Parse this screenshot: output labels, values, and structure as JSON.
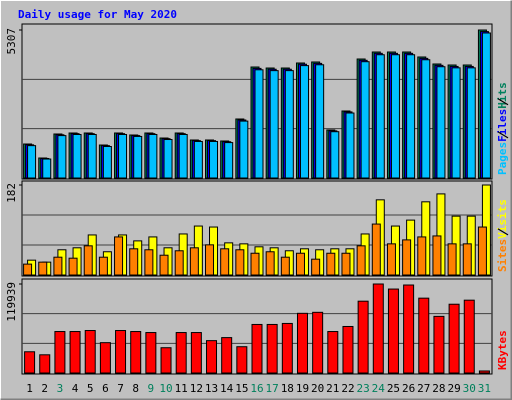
{
  "chart_data": [
    {
      "type": "bar",
      "title": "Daily usage for May 2020",
      "ylim": [
        0,
        5307
      ],
      "yticks": [
        5307
      ],
      "series": [
        {
          "name": "Hits",
          "color": "#00805c",
          "values": [
            1219,
            717,
            1578,
            1614,
            1614,
            1183,
            1614,
            1542,
            1614,
            1434,
            1614,
            1363,
            1363,
            1327,
            2116,
            3980,
            3944,
            3944,
            4124,
            4160,
            1721,
            2403,
            4267,
            4518,
            4518,
            4518,
            4339,
            4088,
            4052,
            4052,
            5307
          ]
        },
        {
          "name": "Files",
          "color": "#0000ff",
          "values": [
            1190,
            700,
            1550,
            1590,
            1590,
            1160,
            1590,
            1520,
            1590,
            1410,
            1590,
            1340,
            1340,
            1300,
            2080,
            3930,
            3900,
            3900,
            4080,
            4110,
            1690,
            2370,
            4220,
            4470,
            4470,
            4470,
            4290,
            4040,
            4000,
            4000,
            5250
          ]
        },
        {
          "name": "Pages",
          "color": "#00c0ff",
          "values": [
            1160,
            680,
            1520,
            1560,
            1560,
            1130,
            1560,
            1490,
            1560,
            1380,
            1560,
            1310,
            1310,
            1270,
            2040,
            3880,
            3850,
            3850,
            4030,
            4060,
            1660,
            2330,
            4170,
            4420,
            4420,
            4420,
            4240,
            3990,
            3950,
            3950,
            5200
          ]
        }
      ]
    },
    {
      "type": "bar",
      "ylim": [
        0,
        182
      ],
      "yticks": [
        182
      ],
      "series": [
        {
          "name": "Visits",
          "color": "#ffff00",
          "values": [
            30,
            26,
            51,
            55,
            81,
            47,
            81,
            69,
            77,
            55,
            83,
            99,
            97,
            65,
            63,
            57,
            55,
            49,
            53,
            51,
            53,
            53,
            83,
            152,
            99,
            111,
            148,
            164,
            119,
            119,
            182
          ]
        },
        {
          "name": "Sites",
          "color": "#ff8000",
          "values": [
            22,
            26,
            36,
            34,
            59,
            36,
            77,
            53,
            51,
            40,
            49,
            55,
            61,
            53,
            51,
            44,
            47,
            36,
            44,
            32,
            44,
            44,
            59,
            103,
            63,
            71,
            77,
            79,
            63,
            63,
            97
          ]
        }
      ]
    },
    {
      "type": "bar",
      "ylim": [
        0,
        119939
      ],
      "yticks": [
        119939
      ],
      "categories": [
        "1",
        "2",
        "3",
        "4",
        "5",
        "6",
        "7",
        "8",
        "9",
        "10",
        "11",
        "12",
        "13",
        "14",
        "15",
        "16",
        "17",
        "18",
        "19",
        "20",
        "21",
        "22",
        "23",
        "24",
        "25",
        "26",
        "27",
        "28",
        "29",
        "30",
        "31"
      ],
      "weekend_indices": [
        2,
        8,
        9,
        15,
        16,
        22,
        23,
        29,
        30
      ],
      "weekday_color": "#000000",
      "weekend_color": "#00805c",
      "series": [
        {
          "name": "KBytes",
          "color": "#ff0000",
          "values": [
            28622,
            24534,
            55880,
            55880,
            57243,
            40888,
            57243,
            55880,
            54517,
            34074,
            54517,
            54517,
            43614,
            47703,
            35437,
            65420,
            65420,
            66783,
            80412,
            81775,
            55880,
            62695,
            96769,
            119939,
            113124,
            118576,
            100858,
            76323,
            92682,
            98134,
            2726
          ]
        }
      ]
    }
  ]
}
